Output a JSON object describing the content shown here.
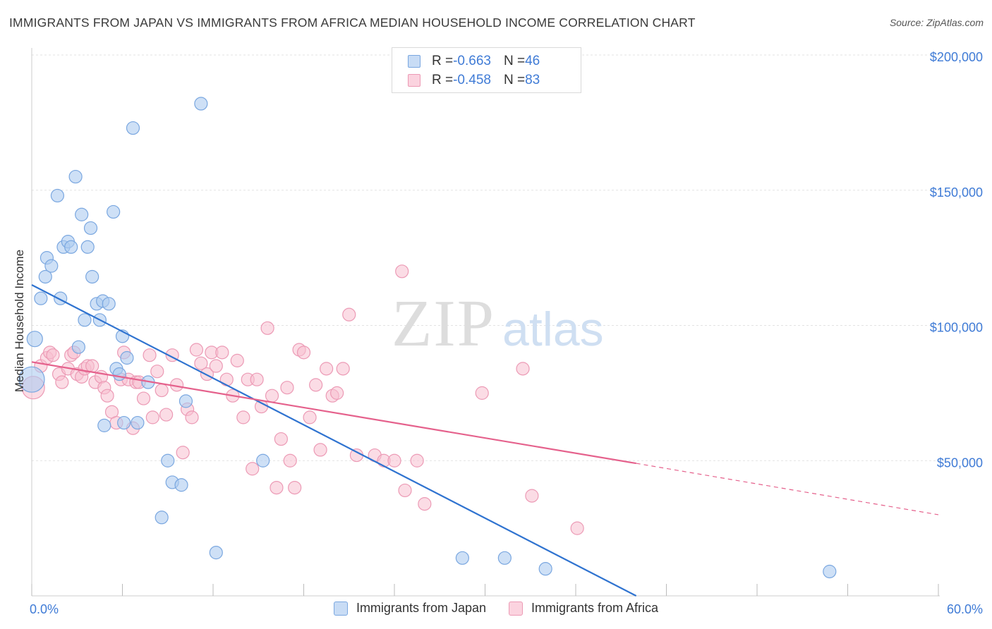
{
  "title": "IMMIGRANTS FROM JAPAN VS IMMIGRANTS FROM AFRICA MEDIAN HOUSEHOLD INCOME CORRELATION CHART",
  "source": "Source: ZipAtlas.com",
  "watermark": {
    "zip": "ZIP",
    "atlas": "atlas"
  },
  "legend_top": {
    "rows": [
      {
        "r_label": "R = ",
        "r_value": "-0.663",
        "n_label": "N = ",
        "n_value": "46"
      },
      {
        "r_label": "R = ",
        "r_value": "-0.458",
        "n_label": "N = ",
        "n_value": "83"
      }
    ]
  },
  "colors": {
    "japan_fill": "#aecbf0",
    "japan_stroke": "#7aa7e0",
    "japan_line": "#2f73d0",
    "africa_fill": "#f7bfd0",
    "africa_stroke": "#ec9ab5",
    "africa_line": "#e5618c",
    "tick_label": "#3f7bd6",
    "grid": "#e3e3e3"
  },
  "chart_data": {
    "type": "scatter",
    "title": "IMMIGRANTS FROM JAPAN VS IMMIGRANTS FROM AFRICA MEDIAN HOUSEHOLD INCOME CORRELATION CHART",
    "xlabel": "",
    "ylabel": "Median Household Income",
    "xlim": [
      0,
      60
    ],
    "ylim": [
      0,
      200000
    ],
    "x_tick_labels": [
      "0.0%",
      "60.0%"
    ],
    "y_ticks": [
      50000,
      100000,
      150000,
      200000
    ],
    "y_tick_labels": [
      "$50,000",
      "$100,000",
      "$150,000",
      "$200,000"
    ],
    "grid": true,
    "legend_position": "bottom",
    "series": [
      {
        "name": "Immigrants from Japan",
        "r": -0.663,
        "n": 46,
        "trend": {
          "x": [
            0,
            40
          ],
          "y": [
            115000,
            0
          ]
        },
        "points": [
          [
            0.0,
            80000
          ],
          [
            0.2,
            95000
          ],
          [
            0.6,
            110000
          ],
          [
            0.9,
            118000
          ],
          [
            1.0,
            125000
          ],
          [
            1.3,
            122000
          ],
          [
            1.7,
            148000
          ],
          [
            1.9,
            110000
          ],
          [
            2.1,
            129000
          ],
          [
            2.4,
            131000
          ],
          [
            2.6,
            129000
          ],
          [
            2.9,
            155000
          ],
          [
            3.1,
            92000
          ],
          [
            3.3,
            141000
          ],
          [
            3.5,
            102000
          ],
          [
            3.7,
            129000
          ],
          [
            3.9,
            136000
          ],
          [
            4.0,
            118000
          ],
          [
            4.3,
            108000
          ],
          [
            4.5,
            102000
          ],
          [
            4.7,
            109000
          ],
          [
            4.8,
            63000
          ],
          [
            5.1,
            108000
          ],
          [
            5.4,
            142000
          ],
          [
            5.6,
            84000
          ],
          [
            5.8,
            82000
          ],
          [
            6.0,
            96000
          ],
          [
            6.1,
            64000
          ],
          [
            6.3,
            88000
          ],
          [
            6.7,
            173000
          ],
          [
            7.0,
            64000
          ],
          [
            7.7,
            79000
          ],
          [
            8.6,
            29000
          ],
          [
            9.0,
            50000
          ],
          [
            9.3,
            42000
          ],
          [
            9.9,
            41000
          ],
          [
            10.2,
            72000
          ],
          [
            11.2,
            182000
          ],
          [
            12.2,
            16000
          ],
          [
            15.3,
            50000
          ],
          [
            28.5,
            14000
          ],
          [
            31.3,
            14000
          ],
          [
            34.0,
            10000
          ],
          [
            52.8,
            9000
          ]
        ]
      },
      {
        "name": "Immigrants from Africa",
        "r": -0.458,
        "n": 83,
        "trend": {
          "x": [
            0,
            40
          ],
          "y": [
            86500,
            49000
          ]
        },
        "trend_dashed": {
          "x": [
            40,
            60
          ],
          "y": [
            49000,
            30000
          ]
        },
        "points": [
          [
            0.1,
            77000
          ],
          [
            0.6,
            85000
          ],
          [
            1.0,
            88000
          ],
          [
            1.2,
            90000
          ],
          [
            1.4,
            89000
          ],
          [
            1.8,
            82000
          ],
          [
            2.0,
            79000
          ],
          [
            2.4,
            84000
          ],
          [
            2.6,
            89000
          ],
          [
            2.8,
            90000
          ],
          [
            3.0,
            82000
          ],
          [
            3.3,
            81000
          ],
          [
            3.5,
            84000
          ],
          [
            3.7,
            85000
          ],
          [
            4.0,
            85000
          ],
          [
            4.2,
            79000
          ],
          [
            4.6,
            81000
          ],
          [
            4.8,
            77000
          ],
          [
            5.0,
            74000
          ],
          [
            5.3,
            68000
          ],
          [
            5.6,
            64000
          ],
          [
            5.9,
            80000
          ],
          [
            6.1,
            90000
          ],
          [
            6.4,
            80000
          ],
          [
            6.7,
            62000
          ],
          [
            6.9,
            79000
          ],
          [
            7.1,
            79000
          ],
          [
            7.4,
            73000
          ],
          [
            7.8,
            89000
          ],
          [
            8.0,
            66000
          ],
          [
            8.3,
            83000
          ],
          [
            8.6,
            76000
          ],
          [
            8.9,
            67000
          ],
          [
            9.3,
            89000
          ],
          [
            9.6,
            78000
          ],
          [
            10.0,
            53000
          ],
          [
            10.3,
            69000
          ],
          [
            10.6,
            66000
          ],
          [
            10.9,
            91000
          ],
          [
            11.2,
            86000
          ],
          [
            11.6,
            82000
          ],
          [
            11.9,
            90000
          ],
          [
            12.2,
            85000
          ],
          [
            12.6,
            90000
          ],
          [
            12.9,
            80000
          ],
          [
            13.3,
            74000
          ],
          [
            13.6,
            87000
          ],
          [
            14.0,
            66000
          ],
          [
            14.3,
            80000
          ],
          [
            14.6,
            47000
          ],
          [
            14.9,
            80000
          ],
          [
            15.2,
            70000
          ],
          [
            15.6,
            99000
          ],
          [
            15.9,
            74000
          ],
          [
            16.2,
            40000
          ],
          [
            16.5,
            58000
          ],
          [
            16.9,
            77000
          ],
          [
            17.1,
            50000
          ],
          [
            17.4,
            40000
          ],
          [
            17.7,
            91000
          ],
          [
            18.0,
            90000
          ],
          [
            18.4,
            66000
          ],
          [
            18.8,
            78000
          ],
          [
            19.1,
            54000
          ],
          [
            19.5,
            84000
          ],
          [
            19.9,
            74000
          ],
          [
            20.2,
            75000
          ],
          [
            20.6,
            84000
          ],
          [
            21.0,
            104000
          ],
          [
            21.5,
            52000
          ],
          [
            22.7,
            52000
          ],
          [
            23.3,
            50000
          ],
          [
            24.0,
            50000
          ],
          [
            24.5,
            120000
          ],
          [
            24.7,
            39000
          ],
          [
            25.5,
            50000
          ],
          [
            26.0,
            34000
          ],
          [
            29.8,
            75000
          ],
          [
            32.5,
            84000
          ],
          [
            33.1,
            37000
          ],
          [
            36.1,
            25000
          ]
        ]
      }
    ]
  }
}
